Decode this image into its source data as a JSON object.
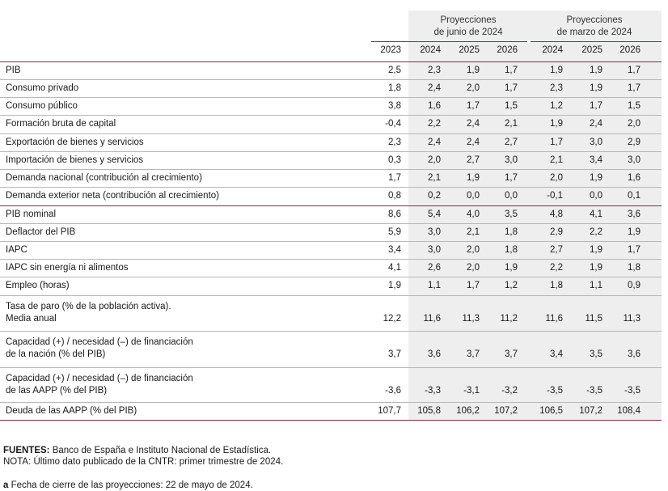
{
  "header": {
    "group1": [
      "Proyecciones",
      "de junio de 2024"
    ],
    "group2": [
      "Proyecciones",
      "de marzo de 2024"
    ],
    "years": [
      "2023",
      "2024",
      "2025",
      "2026",
      "2024",
      "2025",
      "2026"
    ]
  },
  "rows": [
    {
      "label": [
        "PIB"
      ],
      "values": [
        "2,5",
        "2,3",
        "1,9",
        "1,7",
        "1,9",
        "1,9",
        "1,7"
      ]
    },
    {
      "label": [
        "Consumo privado"
      ],
      "values": [
        "1,8",
        "2,4",
        "2,0",
        "1,7",
        "2,3",
        "1,9",
        "1,7"
      ]
    },
    {
      "label": [
        "Consumo público"
      ],
      "values": [
        "3,8",
        "1,6",
        "1,7",
        "1,5",
        "1,2",
        "1,7",
        "1,5"
      ]
    },
    {
      "label": [
        "Formación bruta de capital"
      ],
      "values": [
        "-0,4",
        "2,2",
        "2,4",
        "2,1",
        "1,9",
        "2,4",
        "2,0"
      ]
    },
    {
      "label": [
        "Exportación de bienes y servicios"
      ],
      "values": [
        "2,3",
        "2,4",
        "2,4",
        "2,7",
        "1,7",
        "3,0",
        "2,9"
      ]
    },
    {
      "label": [
        "Importación de bienes y servicios"
      ],
      "values": [
        "0,3",
        "2,0",
        "2,7",
        "3,0",
        "2,1",
        "3,4",
        "3,0"
      ]
    },
    {
      "label": [
        "Demanda nacional (contribución al crecimiento)"
      ],
      "values": [
        "1,7",
        "2,1",
        "1,9",
        "1,7",
        "2,0",
        "1,9",
        "1,6"
      ]
    },
    {
      "label": [
        "Demanda exterior neta (contribución al crecimiento)"
      ],
      "values": [
        "0,8",
        "0,2",
        "0,0",
        "0,0",
        "-0,1",
        "0,0",
        "0,1"
      ]
    },
    {
      "label": [
        "PIB nominal"
      ],
      "values": [
        "8,6",
        "5,4",
        "4,0",
        "3,5",
        "4,8",
        "4,1",
        "3,6"
      ]
    },
    {
      "label": [
        "Deflactor del PIB"
      ],
      "values": [
        "5,9",
        "3,0",
        "2,1",
        "1,8",
        "2,9",
        "2,2",
        "1,9"
      ]
    },
    {
      "label": [
        "IAPC"
      ],
      "values": [
        "3,4",
        "3,0",
        "2,0",
        "1,8",
        "2,7",
        "1,9",
        "1,7"
      ]
    },
    {
      "label": [
        "IAPC sin energía ni alimentos"
      ],
      "values": [
        "4,1",
        "2,6",
        "2,0",
        "1,9",
        "2,2",
        "1,9",
        "1,8"
      ]
    },
    {
      "label": [
        "Empleo (horas)"
      ],
      "values": [
        "1,9",
        "1,1",
        "1,7",
        "1,2",
        "1,8",
        "1,1",
        "0,9"
      ]
    },
    {
      "label": [
        "Tasa de paro (% de la población activa).",
        "Media anual"
      ],
      "values": [
        "12,2",
        "11,6",
        "11,3",
        "11,2",
        "11,6",
        "11,5",
        "11,3"
      ]
    },
    {
      "label": [
        "Capacidad (+) / necesidad (–) de financiación",
        "de la nación (% del PIB)"
      ],
      "values": [
        "3,7",
        "3,6",
        "3,7",
        "3,7",
        "3,4",
        "3,5",
        "3,6"
      ]
    },
    {
      "label": [
        "Capacidad (+) / necesidad (–) de financiación",
        "de las AAPP (% del PIB)"
      ],
      "values": [
        "-3,6",
        "-3,3",
        "-3,1",
        "-3,2",
        "-3,5",
        "-3,5",
        "-3,5"
      ]
    },
    {
      "label": [
        "Deuda de las AAPP (% del PIB)"
      ],
      "values": [
        "107,7",
        "105,8",
        "106,2",
        "107,2",
        "106,5",
        "107,2",
        "108,4"
      ]
    }
  ],
  "footnotes": {
    "sources_label": "FUENTES:",
    "sources_text": " Banco de España e Instituto Nacional de Estadística.",
    "note": "NOTA: Último dato publicado de la CNTR: primer trimestre de 2024.",
    "a_label": "a",
    "a_text": "  Fecha de cierre de las proyecciones: 22 de mayo de 2024."
  },
  "colors": {
    "accent": "#8b2a46",
    "separator": "#b8b8b8",
    "shade": "#eeeeee"
  }
}
